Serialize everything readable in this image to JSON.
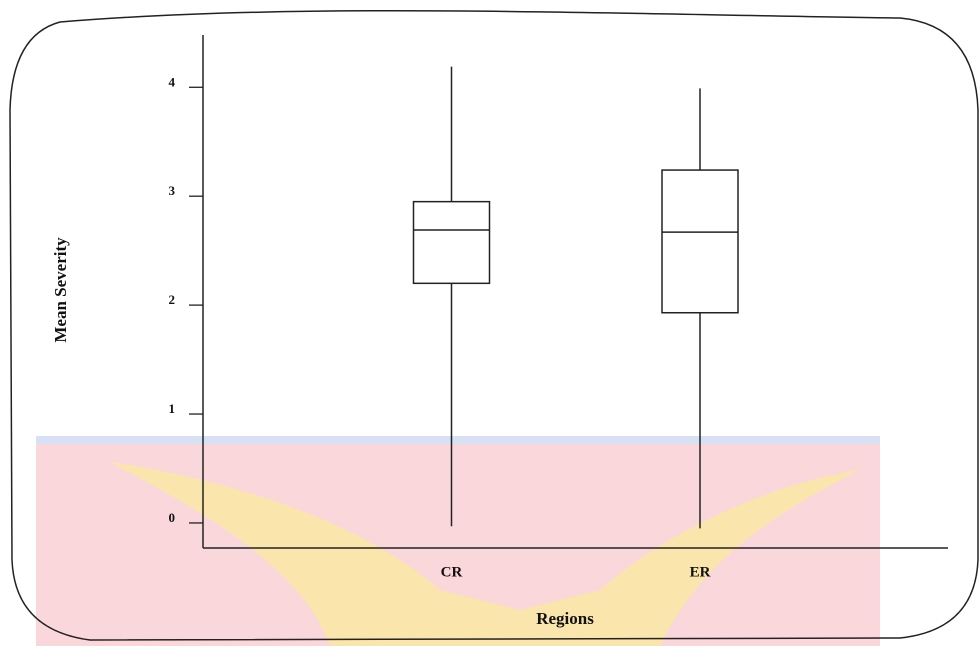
{
  "chart_data": {
    "type": "box",
    "x_label": "Regions",
    "y_label": "Mean Severity",
    "categories": [
      "CR",
      "ER"
    ],
    "boxes": [
      {
        "min": -0.03,
        "q1": 2.2,
        "median": 2.69,
        "q3": 2.95,
        "max": 4.19
      },
      {
        "min": -0.05,
        "q1": 1.93,
        "median": 2.67,
        "q3": 3.24,
        "max": 3.99
      }
    ],
    "ylim": [
      -0.23,
      4.48
    ],
    "yticks": [
      0,
      1,
      2,
      3,
      4
    ],
    "color": "#222222"
  }
}
